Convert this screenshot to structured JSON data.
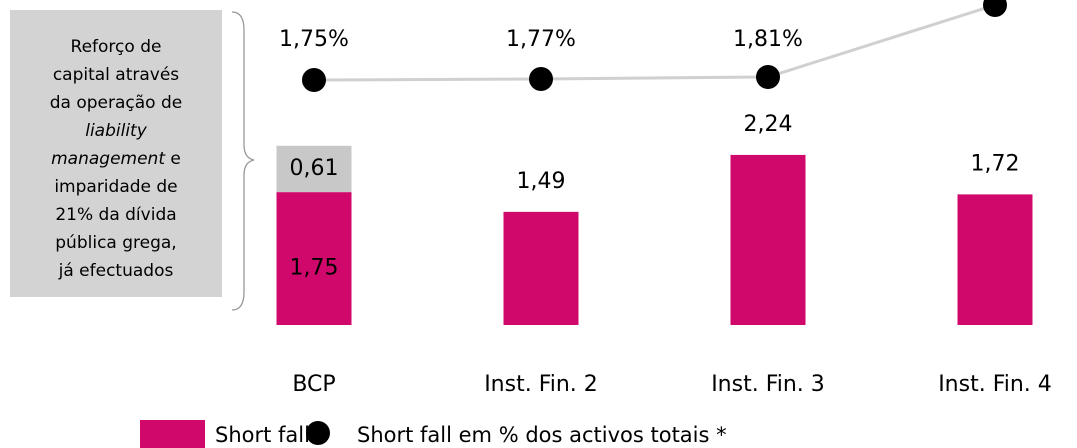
{
  "chart_data": {
    "type": "bar",
    "categories": [
      "BCP",
      "Inst. Fin. 2",
      "Inst. Fin. 3",
      "Inst. Fin. 4"
    ],
    "series": [
      {
        "name": "Short fall",
        "color": "#d1086b",
        "values": [
          1.75,
          1.49,
          2.24,
          1.72
        ],
        "value_labels": [
          "1,75",
          "1,49",
          "2,24",
          "1,72"
        ]
      },
      {
        "color": "#c8c8c8",
        "values": [
          0.61,
          null,
          null,
          null
        ],
        "value_labels": [
          "0,61",
          null,
          null,
          null
        ]
      },
      {
        "name": "Short fall em % dos activos totais *",
        "type": "line",
        "axis": "y2",
        "color": "#000000",
        "line_color": "#d0d0d0",
        "values": [
          1.75,
          1.77,
          1.81,
          3.25
        ],
        "value_labels": [
          "1,75%",
          "1,77%",
          "1,81%",
          null
        ]
      }
    ],
    "ylim": [
      0,
      4.28
    ],
    "y2lim": [
      -3.15,
      3.35
    ],
    "annotation": [
      [
        {
          "text": "Reforço de"
        }
      ],
      [
        {
          "text": "capital através"
        }
      ],
      [
        {
          "text": "da operação de"
        }
      ],
      [
        {
          "text": "liability",
          "italic": true
        }
      ],
      [
        {
          "text": "management",
          "italic": true
        },
        {
          "text": " e"
        }
      ],
      [
        {
          "text": "imparidade de"
        }
      ],
      [
        {
          "text": "21% da dívida"
        }
      ],
      [
        {
          "text": "pública grega,"
        }
      ],
      [
        {
          "text": "já efectuados"
        }
      ]
    ]
  }
}
